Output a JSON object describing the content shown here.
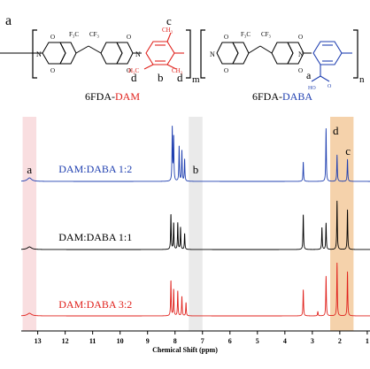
{
  "panel_label": "a",
  "structure": {
    "left_unit": {
      "name_part1": "6FDA-",
      "name_part2": "DAM",
      "cf3_left": "F₃C",
      "cf3_right": "CF₃",
      "methyl_top": "CH₃",
      "methyl_left": "H₃C",
      "methyl_right": "CH₃",
      "subscript": "m",
      "labels": {
        "c": "c",
        "b": "b",
        "d1": "d",
        "d2": "d"
      }
    },
    "right_unit": {
      "name_part1": "6FDA-",
      "name_part2": "DABA",
      "cf3_left": "F₃C",
      "cf3_right": "CF₃",
      "ho": "HO",
      "subscript": "n",
      "labels": {
        "a": "a"
      }
    },
    "atoms": {
      "n": "N",
      "o": "O"
    }
  },
  "colors": {
    "dam": "#e0201b",
    "daba": "#1f3fb0",
    "black": "#000000",
    "pink_band": "#f7d3d6",
    "gray_band": "#e3e3e3",
    "orange_band": "#f2c38f"
  },
  "chart_data": {
    "type": "line",
    "xlabel": "Chemical Shift (ppm)",
    "x_ticks": [
      13,
      12,
      11,
      10,
      9,
      8,
      7,
      6,
      5,
      4,
      3,
      2,
      1
    ],
    "xlim": [
      13.6,
      0.9
    ],
    "x_reversed": true,
    "series": [
      {
        "name": "DAM:DABA 1:2",
        "color": "#1f3fb0",
        "peaks": [
          [
            13.3,
            4
          ],
          [
            8.1,
            60
          ],
          [
            8.05,
            50
          ],
          [
            7.85,
            40
          ],
          [
            7.75,
            35
          ],
          [
            7.65,
            25
          ],
          [
            3.33,
            22
          ],
          [
            2.5,
            60
          ],
          [
            2.1,
            30
          ],
          [
            1.72,
            25
          ]
        ]
      },
      {
        "name": "DAM:DABA 1:1",
        "color": "#000000",
        "peaks": [
          [
            13.3,
            3
          ],
          [
            8.15,
            40
          ],
          [
            8.05,
            30
          ],
          [
            7.9,
            30
          ],
          [
            7.8,
            25
          ],
          [
            7.65,
            18
          ],
          [
            3.33,
            40
          ],
          [
            2.65,
            25
          ],
          [
            2.5,
            30
          ],
          [
            2.1,
            55
          ],
          [
            1.72,
            45
          ]
        ]
      },
      {
        "name": "DAM:DABA 3:2",
        "color": "#e0201b",
        "peaks": [
          [
            13.3,
            3
          ],
          [
            8.15,
            40
          ],
          [
            8.05,
            30
          ],
          [
            7.9,
            28
          ],
          [
            7.75,
            22
          ],
          [
            7.6,
            15
          ],
          [
            3.33,
            30
          ],
          [
            2.8,
            5
          ],
          [
            2.5,
            45
          ],
          [
            2.1,
            60
          ],
          [
            1.72,
            50
          ]
        ]
      }
    ],
    "highlight_bands": [
      {
        "label": "a",
        "from": 13.55,
        "to": 13.05,
        "color": "#f7d3d6"
      },
      {
        "label": "b",
        "from": 7.5,
        "to": 7.0,
        "color": "#e3e3e3"
      },
      {
        "label": "d",
        "from": 2.35,
        "to": 1.5,
        "color": "#f2c38f"
      }
    ],
    "peak_labels": {
      "a": "a",
      "b": "b",
      "c": "c",
      "d": "d"
    }
  }
}
